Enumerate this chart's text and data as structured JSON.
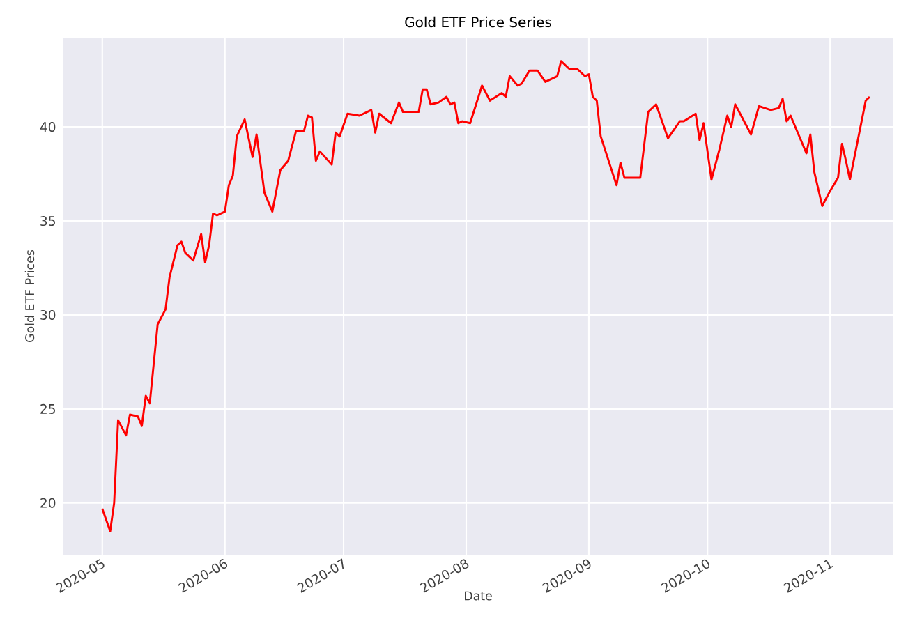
{
  "chart_data": {
    "type": "line",
    "title": "Gold ETF Price Series",
    "xlabel": "Date",
    "ylabel": "Gold ETF Prices",
    "x": [
      "2020-05-01",
      "2020-05-03",
      "2020-05-04",
      "2020-05-05",
      "2020-05-07",
      "2020-05-08",
      "2020-05-10",
      "2020-05-11",
      "2020-05-12",
      "2020-05-13",
      "2020-05-15",
      "2020-05-17",
      "2020-05-18",
      "2020-05-20",
      "2020-05-21",
      "2020-05-22",
      "2020-05-24",
      "2020-05-26",
      "2020-05-27",
      "2020-05-28",
      "2020-05-29",
      "2020-05-30",
      "2020-06-01",
      "2020-06-02",
      "2020-06-03",
      "2020-06-04",
      "2020-06-06",
      "2020-06-08",
      "2020-06-09",
      "2020-06-11",
      "2020-06-13",
      "2020-06-15",
      "2020-06-17",
      "2020-06-19",
      "2020-06-21",
      "2020-06-22",
      "2020-06-23",
      "2020-06-24",
      "2020-06-25",
      "2020-06-28",
      "2020-06-29",
      "2020-06-30",
      "2020-07-02",
      "2020-07-05",
      "2020-07-08",
      "2020-07-09",
      "2020-07-10",
      "2020-07-13",
      "2020-07-15",
      "2020-07-16",
      "2020-07-20",
      "2020-07-21",
      "2020-07-22",
      "2020-07-23",
      "2020-07-25",
      "2020-07-27",
      "2020-07-28",
      "2020-07-29",
      "2020-07-30",
      "2020-07-31",
      "2020-08-02",
      "2020-08-05",
      "2020-08-07",
      "2020-08-10",
      "2020-08-11",
      "2020-08-12",
      "2020-08-14",
      "2020-08-15",
      "2020-08-17",
      "2020-08-19",
      "2020-08-21",
      "2020-08-24",
      "2020-08-25",
      "2020-08-27",
      "2020-08-29",
      "2020-08-31",
      "2020-09-01",
      "2020-09-02",
      "2020-09-03",
      "2020-09-04",
      "2020-09-08",
      "2020-09-09",
      "2020-09-10",
      "2020-09-13",
      "2020-09-14",
      "2020-09-16",
      "2020-09-18",
      "2020-09-21",
      "2020-09-24",
      "2020-09-25",
      "2020-09-28",
      "2020-09-29",
      "2020-09-30",
      "2020-10-02",
      "2020-10-04",
      "2020-10-06",
      "2020-10-07",
      "2020-10-08",
      "2020-10-12",
      "2020-10-14",
      "2020-10-17",
      "2020-10-19",
      "2020-10-20",
      "2020-10-21",
      "2020-10-22",
      "2020-10-26",
      "2020-10-27",
      "2020-10-28",
      "2020-10-30",
      "2020-11-01",
      "2020-11-03",
      "2020-11-04",
      "2020-11-05",
      "2020-11-06",
      "2020-11-10",
      "2020-11-11"
    ],
    "series": [
      {
        "color": "#ff0000",
        "values": [
          19.7,
          18.5,
          20.0,
          24.4,
          23.6,
          24.7,
          24.6,
          24.1,
          25.7,
          25.3,
          29.5,
          30.3,
          32.0,
          33.7,
          33.9,
          33.3,
          32.9,
          34.3,
          32.8,
          33.7,
          35.4,
          35.3,
          35.5,
          36.9,
          37.4,
          39.5,
          40.4,
          38.4,
          39.6,
          36.5,
          35.5,
          37.7,
          38.2,
          39.8,
          39.8,
          40.6,
          40.5,
          38.2,
          38.7,
          38.0,
          39.7,
          39.5,
          40.7,
          40.6,
          40.9,
          39.7,
          40.7,
          40.2,
          41.3,
          40.8,
          40.8,
          42.0,
          42.0,
          41.2,
          41.3,
          41.6,
          41.2,
          41.3,
          40.2,
          40.3,
          40.2,
          42.2,
          41.4,
          41.8,
          41.6,
          42.7,
          42.2,
          42.3,
          43.0,
          43.0,
          42.4,
          42.7,
          43.5,
          43.1,
          43.1,
          42.7,
          42.8,
          41.6,
          41.4,
          39.5,
          36.9,
          38.1,
          37.3,
          37.3,
          37.3,
          40.8,
          41.2,
          39.4,
          40.3,
          40.3,
          40.7,
          39.3,
          40.2,
          37.2,
          38.8,
          40.6,
          40.0,
          41.2,
          39.6,
          41.1,
          40.9,
          41.0,
          41.5,
          40.3,
          40.6,
          38.6,
          39.6,
          37.6,
          35.8,
          36.6,
          37.3,
          39.1,
          38.2,
          37.2,
          41.4,
          41.6
        ]
      }
    ],
    "xlim": [
      "2020-04-21",
      "2020-11-17"
    ],
    "ylim": [
      17.25,
      44.75
    ],
    "xticks": [
      "2020-05",
      "2020-06",
      "2020-07",
      "2020-08",
      "2020-09",
      "2020-10",
      "2020-11"
    ],
    "yticks": [
      20,
      25,
      30,
      35,
      40
    ],
    "grid": true
  }
}
